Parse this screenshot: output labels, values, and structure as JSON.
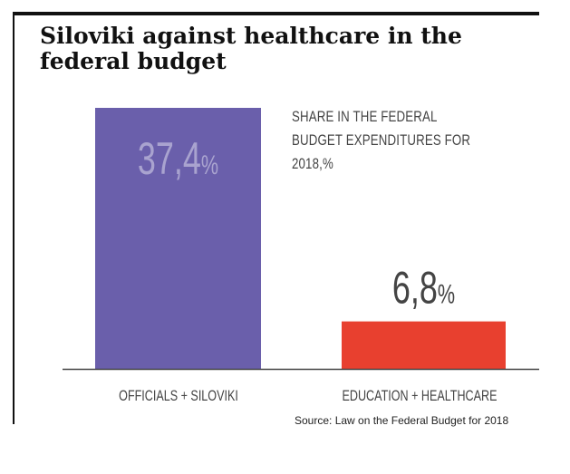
{
  "colors": {
    "officials": "#6a5fab",
    "education": "#e8402f",
    "value_light": "#a9a3cf",
    "value_dark": "#444444",
    "axis": "#444444",
    "category": "#444444"
  },
  "header": {
    "title": "Siloviki against healthcare in the federal budget"
  },
  "chart_data": {
    "type": "bar",
    "title": "Siloviki against healthcare in the federal budget",
    "subtitle": "SHARE IN THE FEDERAL BUDGET EXPENDITURES FOR 2018,%",
    "categories": [
      "OFFICIALS + SILOVIKI",
      "EDUCATION + HEALTHCARE"
    ],
    "values": [
      37.4,
      6.8
    ],
    "value_labels": [
      "37,4",
      "6,8"
    ],
    "unit": "%",
    "ylim": [
      0,
      37.4
    ],
    "grid": false,
    "legend": "none",
    "xlabel": "",
    "ylabel": ""
  },
  "footer": {
    "source": "Source: Law on the Federal Budget for 2018"
  }
}
